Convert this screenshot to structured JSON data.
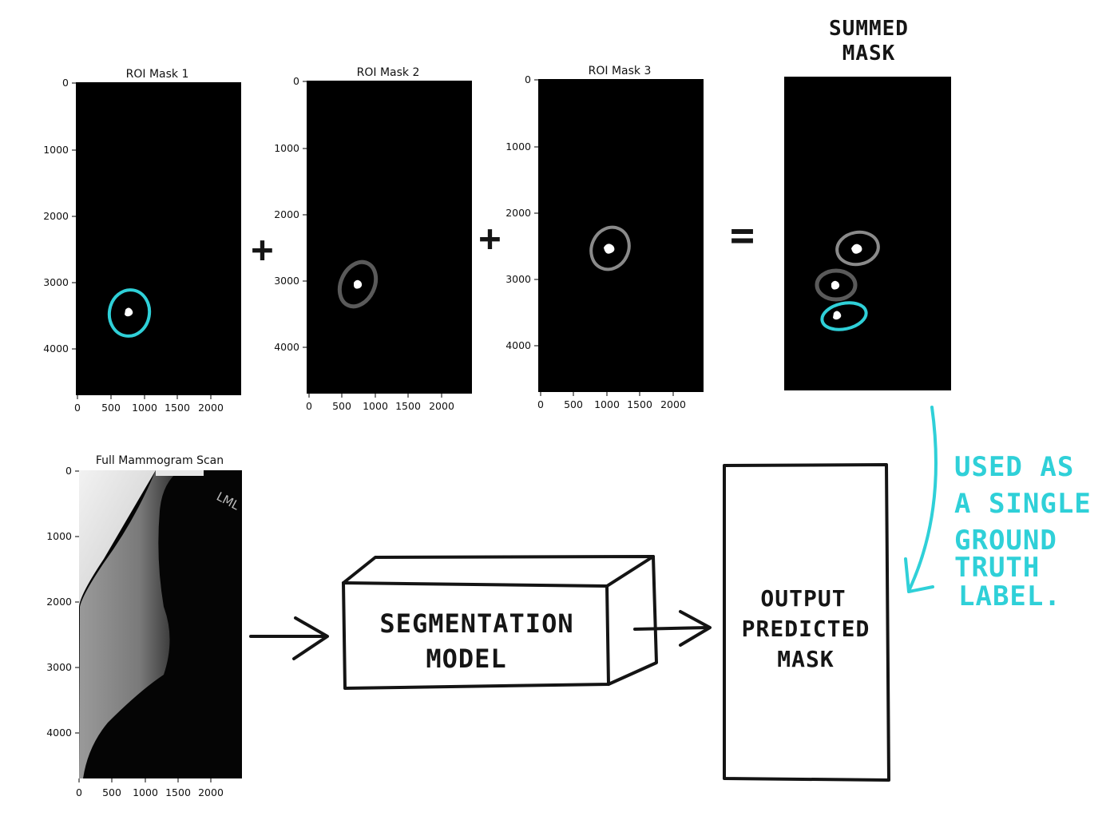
{
  "panels": [
    {
      "id": "roi1",
      "title": "ROI Mask 1",
      "y_ticks": [
        "0",
        "1000",
        "2000",
        "3000",
        "4000"
      ],
      "x_ticks": [
        "0",
        "500",
        "1000",
        "1500",
        "2000"
      ]
    },
    {
      "id": "roi2",
      "title": "ROI Mask 2",
      "y_ticks": [
        "0",
        "1000",
        "2000",
        "3000",
        "4000"
      ],
      "x_ticks": [
        "0",
        "500",
        "1000",
        "1500",
        "2000"
      ]
    },
    {
      "id": "roi3",
      "title": "ROI Mask 3",
      "y_ticks": [
        "0",
        "1000",
        "2000",
        "3000",
        "4000"
      ],
      "x_ticks": [
        "0",
        "500",
        "1000",
        "1500",
        "2000"
      ]
    },
    {
      "id": "scan",
      "title": "Full Mammogram Scan",
      "y_ticks": [
        "0",
        "1000",
        "2000",
        "3000",
        "4000"
      ],
      "x_ticks": [
        "0",
        "500",
        "1000",
        "1500",
        "2000"
      ]
    }
  ],
  "summed_mask": {
    "label_line1": "SUMMED",
    "label_line2": "MASK"
  },
  "operators": {
    "plus": "+",
    "equals": "="
  },
  "scan_marker": "LML",
  "model": {
    "label_line1": "SEGMENTATION",
    "label_line2": "MODEL"
  },
  "output": {
    "label_line1": "OUTPUT",
    "label_line2": "PREDICTED",
    "label_line3": "MASK"
  },
  "note": {
    "line1": "USED AS",
    "line2": "A SINGLE",
    "line3": "GROUND",
    "line4": "TRUTH",
    "line5": "LABEL."
  },
  "colors": {
    "annotation": "#2fd0d8",
    "mask_gray": "#8a8a8a",
    "mask_dark_gray": "#5a5a5a",
    "background": "#000000"
  }
}
